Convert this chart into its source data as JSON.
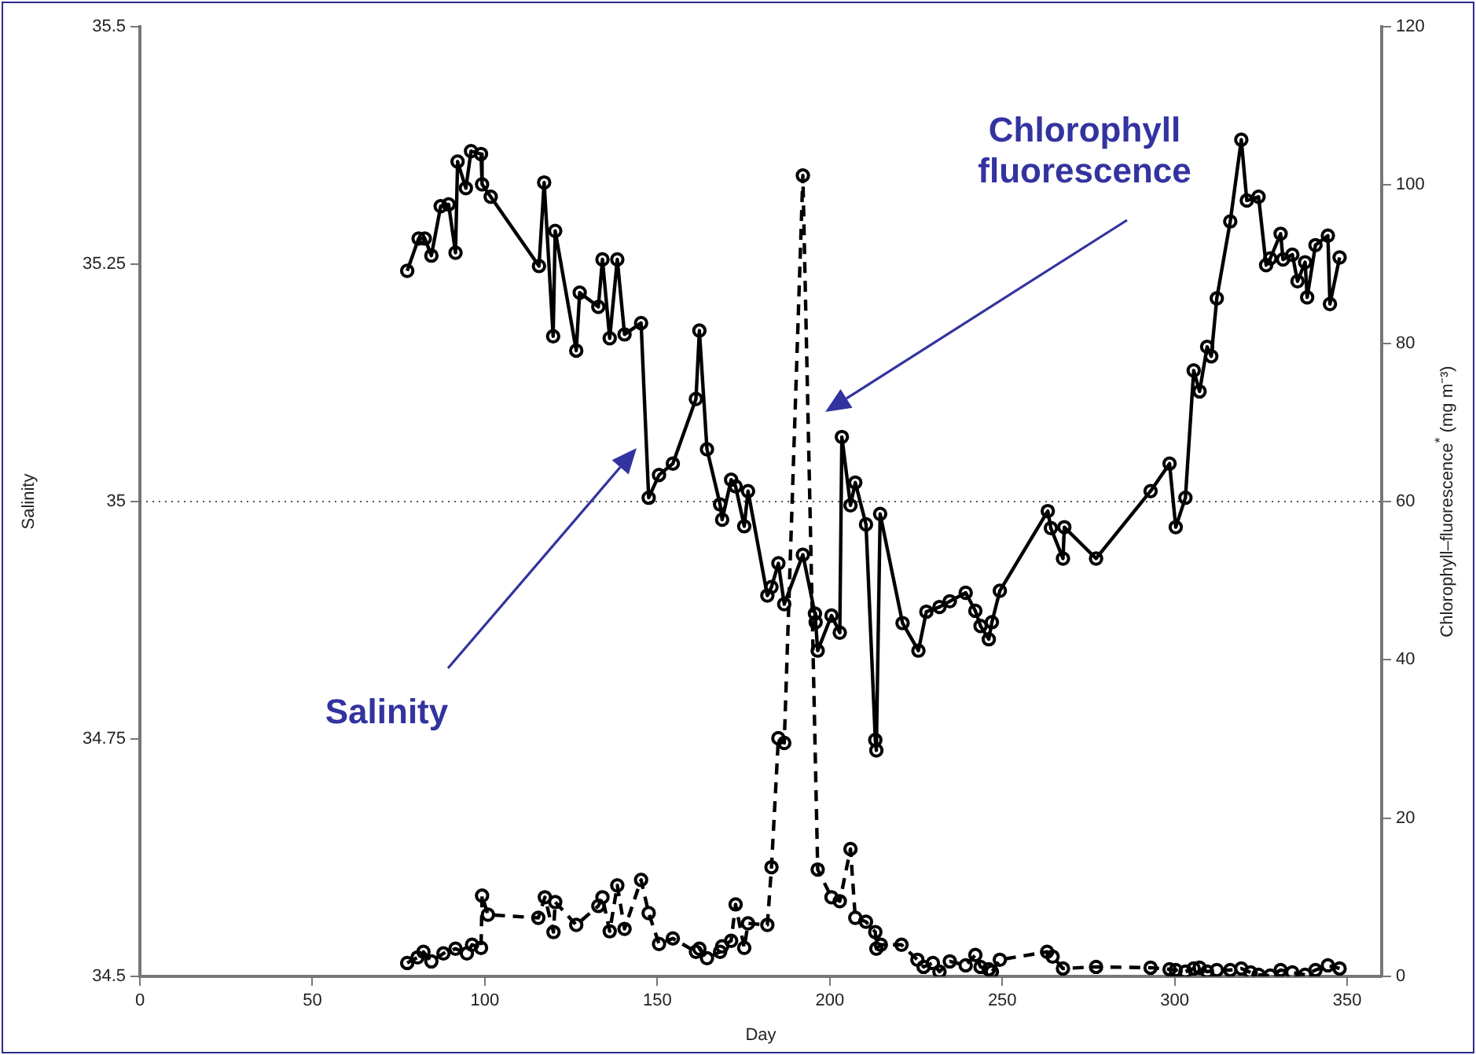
{
  "chart_data": {
    "type": "line",
    "xlabel": "Day",
    "ylabel": "Salinity",
    "y2label": "Chlorophyll–fluorescence$^{*}$ (mg m⁻³)",
    "xlim": [
      0,
      360
    ],
    "xticks": [
      0,
      50,
      100,
      150,
      200,
      250,
      300,
      350
    ],
    "ylim": [
      34.5,
      35.5
    ],
    "yticks": [
      34.5,
      34.75,
      35,
      35.25,
      35.5
    ],
    "y2lim": [
      0,
      120
    ],
    "y2ticks": [
      0,
      20,
      40,
      60,
      80,
      100,
      120
    ],
    "grid": false,
    "legend": false,
    "marker": "circle",
    "ref_lines": [
      {
        "axis": "y",
        "value": 35,
        "line_style": "dotted",
        "color": "#555555"
      }
    ],
    "annotations": [
      "Salinity",
      "Chlorophyll fluorescence"
    ],
    "series": [
      {
        "color": "#000000",
        "line_style": "solid",
        "x": [
          77.5,
          80.8,
          82.6,
          84.5,
          87.2,
          89.5,
          91.5,
          92.1,
          94.5,
          96.0,
          98.9,
          99.2,
          101.7,
          115.7,
          117.2,
          119.8,
          120.4,
          126.5,
          127.5,
          132.9,
          134.1,
          136.2,
          138.4,
          140.5,
          145.3,
          147.5,
          150.5,
          154.5,
          161.2,
          162.2,
          164.4,
          168.2,
          168.8,
          171.4,
          172.7,
          175.2,
          176.3,
          181.9,
          183.1,
          185.1,
          186.8,
          192.2,
          195.7,
          195.9,
          196.5,
          200.5,
          202.9,
          203.5,
          206,
          207.4,
          210.5,
          213.2,
          213.5,
          214.6,
          221.1,
          225.7,
          228,
          231.8,
          234.8,
          239.4,
          242.2,
          243.7,
          246.1,
          247,
          249.3,
          263.2,
          264.1,
          267.6,
          268,
          277.2,
          293,
          298.5,
          300.3,
          303.1,
          305.5,
          307.2,
          309.4,
          310.6,
          312.2,
          316.1,
          319.3,
          320.9,
          324.3,
          326.5,
          327.7,
          330.7,
          331.4,
          334.1,
          335.6,
          337.8,
          338.4,
          340.8,
          344.4,
          345,
          347.8
        ],
        "values": [
          35.243,
          35.277,
          35.277,
          35.259,
          35.311,
          35.313,
          35.262,
          35.358,
          35.33,
          35.369,
          35.366,
          35.334,
          35.321,
          35.248,
          35.336,
          35.174,
          35.285,
          35.159,
          35.22,
          35.205,
          35.255,
          35.172,
          35.255,
          35.176,
          35.188,
          35.004,
          35.028,
          35.04,
          35.108,
          35.18,
          35.055,
          34.997,
          34.981,
          35.023,
          35.016,
          34.974,
          35.011,
          34.901,
          34.91,
          34.935,
          34.892,
          34.944,
          34.882,
          34.873,
          34.843,
          34.88,
          34.862,
          35.068,
          34.996,
          35.02,
          34.976,
          34.749,
          34.738,
          34.987,
          34.872,
          34.843,
          34.884,
          34.889,
          34.895,
          34.904,
          34.885,
          34.869,
          34.855,
          34.873,
          34.906,
          34.99,
          34.972,
          34.94,
          34.973,
          34.94,
          35.011,
          35.04,
          34.973,
          35.004,
          35.138,
          35.116,
          35.163,
          35.153,
          35.214,
          35.295,
          35.381,
          35.317,
          35.321,
          35.249,
          35.256,
          35.282,
          35.255,
          35.26,
          35.232,
          35.252,
          35.215,
          35.27,
          35.28,
          35.208,
          35.257
        ]
      },
      {
        "color": "#000000",
        "line_style": "dashed",
        "axis": "y2",
        "x": [
          77.5,
          80.5,
          82.2,
          84.5,
          88,
          91.5,
          94.8,
          96.3,
          98.9,
          99.2,
          100.9,
          115.5,
          117.4,
          119.9,
          120.4,
          126.5,
          132.9,
          134.1,
          136.2,
          138.4,
          140.5,
          145.3,
          147.5,
          150.5,
          154.5,
          161.2,
          162.2,
          164.4,
          168.2,
          168.8,
          171.4,
          172.7,
          175.2,
          176.3,
          181.9,
          183.1,
          185.1,
          186.8,
          192.2,
          196.5,
          200.5,
          202.9,
          206,
          207.4,
          210.5,
          213.2,
          213.5,
          214.8,
          220.8,
          225.4,
          227.2,
          229.9,
          231.8,
          234.8,
          239.4,
          242.2,
          243.7,
          246.1,
          247,
          249.3,
          263,
          264.6,
          267.6,
          277.2,
          293,
          298.5,
          300.3,
          303.1,
          305.5,
          307.2,
          309.4,
          312.2,
          316.1,
          319.3,
          322,
          324.3,
          327.7,
          330.7,
          334.1,
          337.8,
          340.8,
          344.4,
          347.8
        ],
        "values": [
          1.7,
          2.4,
          3.1,
          1.9,
          2.9,
          3.5,
          2.9,
          4.0,
          3.6,
          10.2,
          7.8,
          7.4,
          10.0,
          5.6,
          9.4,
          6.5,
          8.9,
          10.0,
          5.7,
          11.5,
          6.0,
          12.2,
          8.0,
          4.1,
          4.8,
          3.1,
          3.5,
          2.3,
          3.1,
          3.8,
          4.5,
          9.1,
          3.6,
          6.7,
          6.5,
          13.8,
          30.1,
          29.5,
          101.2,
          13.5,
          10.0,
          9.5,
          16.1,
          7.4,
          6.9,
          5.6,
          3.5,
          4.0,
          4.0,
          2.1,
          1.2,
          1.7,
          0.6,
          1.9,
          1.4,
          2.7,
          1.2,
          0.9,
          0.6,
          2.1,
          3.1,
          2.5,
          1.0,
          1.2,
          1.1,
          0.9,
          0.8,
          0.6,
          1.0,
          1.1,
          0.6,
          0.8,
          0.8,
          1.0,
          0.5,
          0.2,
          0.1,
          0.8,
          0.5,
          0.2,
          0.8,
          1.4,
          1.0
        ]
      }
    ]
  }
}
